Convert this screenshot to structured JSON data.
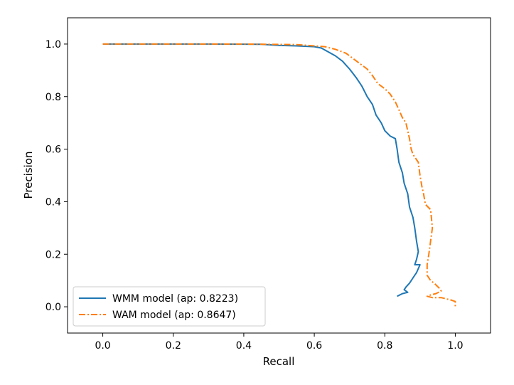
{
  "chart_data": {
    "type": "line",
    "title": "",
    "xlabel": "Recall",
    "ylabel": "Precision",
    "xlim": [
      -0.1,
      1.1
    ],
    "ylim": [
      -0.1,
      1.1
    ],
    "xticks": [
      0.0,
      0.2,
      0.4,
      0.6,
      0.8,
      1.0
    ],
    "yticks": [
      0.0,
      0.2,
      0.4,
      0.6,
      0.8,
      1.0
    ],
    "xtick_labels": [
      "0.0",
      "0.2",
      "0.4",
      "0.6",
      "0.8",
      "1.0"
    ],
    "ytick_labels": [
      "0.0",
      "0.2",
      "0.4",
      "0.6",
      "0.8",
      "1.0"
    ],
    "grid": false,
    "legend_position": "lower-left",
    "series": [
      {
        "name": "WMM model (ap: 0.8223)",
        "color": "#1f77b4",
        "style": "solid",
        "points": [
          [
            0.0,
            1.0
          ],
          [
            0.3,
            1.0
          ],
          [
            0.45,
            0.999
          ],
          [
            0.5,
            0.995
          ],
          [
            0.55,
            0.993
          ],
          [
            0.6,
            0.99
          ],
          [
            0.62,
            0.985
          ],
          [
            0.64,
            0.97
          ],
          [
            0.66,
            0.955
          ],
          [
            0.68,
            0.935
          ],
          [
            0.7,
            0.905
          ],
          [
            0.72,
            0.87
          ],
          [
            0.735,
            0.84
          ],
          [
            0.75,
            0.8
          ],
          [
            0.765,
            0.77
          ],
          [
            0.775,
            0.73
          ],
          [
            0.79,
            0.7
          ],
          [
            0.8,
            0.67
          ],
          [
            0.815,
            0.65
          ],
          [
            0.83,
            0.64
          ],
          [
            0.835,
            0.6
          ],
          [
            0.84,
            0.55
          ],
          [
            0.85,
            0.51
          ],
          [
            0.855,
            0.47
          ],
          [
            0.865,
            0.43
          ],
          [
            0.87,
            0.38
          ],
          [
            0.88,
            0.34
          ],
          [
            0.885,
            0.3
          ],
          [
            0.89,
            0.25
          ],
          [
            0.895,
            0.21
          ],
          [
            0.89,
            0.18
          ],
          [
            0.885,
            0.16
          ],
          [
            0.9,
            0.16
          ],
          [
            0.89,
            0.13
          ],
          [
            0.88,
            0.11
          ],
          [
            0.87,
            0.09
          ],
          [
            0.86,
            0.075
          ],
          [
            0.855,
            0.065
          ],
          [
            0.865,
            0.055
          ],
          [
            0.85,
            0.05
          ],
          [
            0.835,
            0.04
          ]
        ]
      },
      {
        "name": "WAM model (ap: 0.8647)",
        "color": "#ff7f0e",
        "style": "dashdot",
        "points": [
          [
            0.0,
            1.0
          ],
          [
            0.4,
            1.0
          ],
          [
            0.55,
            0.998
          ],
          [
            0.6,
            0.993
          ],
          [
            0.63,
            0.99
          ],
          [
            0.66,
            0.98
          ],
          [
            0.69,
            0.965
          ],
          [
            0.71,
            0.945
          ],
          [
            0.73,
            0.925
          ],
          [
            0.75,
            0.905
          ],
          [
            0.765,
            0.88
          ],
          [
            0.78,
            0.85
          ],
          [
            0.8,
            0.83
          ],
          [
            0.815,
            0.81
          ],
          [
            0.83,
            0.78
          ],
          [
            0.84,
            0.75
          ],
          [
            0.85,
            0.72
          ],
          [
            0.86,
            0.7
          ],
          [
            0.865,
            0.67
          ],
          [
            0.87,
            0.64
          ],
          [
            0.875,
            0.6
          ],
          [
            0.88,
            0.58
          ],
          [
            0.89,
            0.56
          ],
          [
            0.895,
            0.55
          ],
          [
            0.9,
            0.5
          ],
          [
            0.905,
            0.46
          ],
          [
            0.91,
            0.43
          ],
          [
            0.915,
            0.39
          ],
          [
            0.93,
            0.37
          ],
          [
            0.935,
            0.3
          ],
          [
            0.93,
            0.25
          ],
          [
            0.925,
            0.2
          ],
          [
            0.92,
            0.16
          ],
          [
            0.92,
            0.12
          ],
          [
            0.93,
            0.1
          ],
          [
            0.94,
            0.09
          ],
          [
            0.955,
            0.07
          ],
          [
            0.96,
            0.06
          ],
          [
            0.945,
            0.05
          ],
          [
            0.93,
            0.045
          ],
          [
            0.92,
            0.04
          ],
          [
            0.935,
            0.035
          ],
          [
            0.96,
            0.035
          ],
          [
            0.975,
            0.03
          ],
          [
            0.99,
            0.025
          ],
          [
            1.0,
            0.02
          ],
          [
            1.0,
            0.0
          ]
        ]
      }
    ]
  }
}
